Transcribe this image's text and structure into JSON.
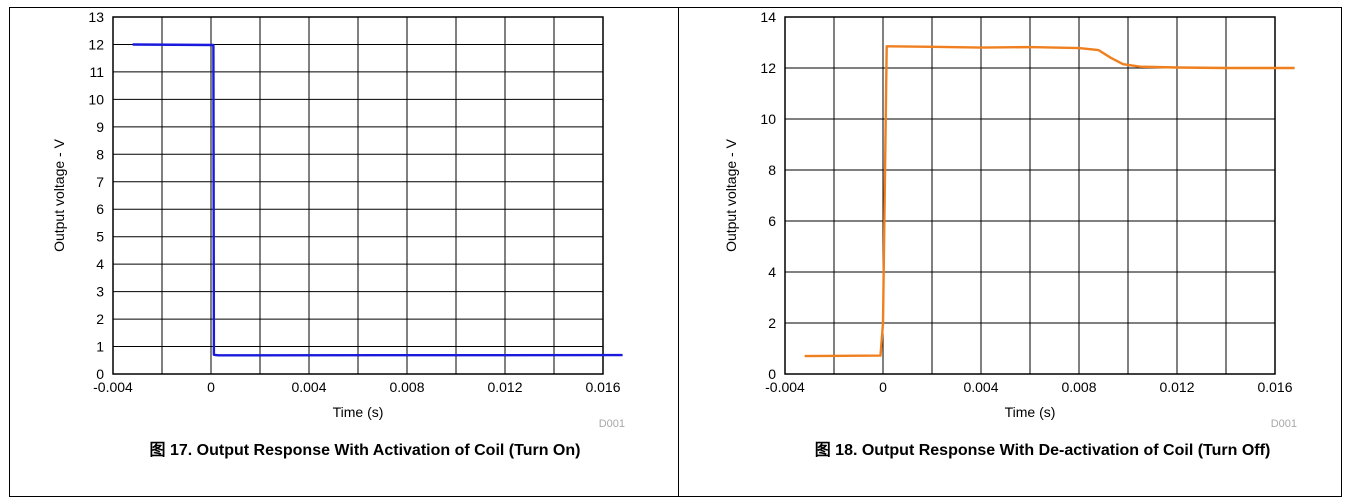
{
  "chart_data": [
    {
      "type": "line",
      "xlabel": "Time (s)",
      "ylabel": "Output voltage - V",
      "xlim": [
        -0.004,
        0.016
      ],
      "ylim": [
        0,
        13
      ],
      "x_ticks": [
        "-0.004",
        "0",
        "0.004",
        "0.008",
        "0.012",
        "0.016"
      ],
      "y_ticks": [
        "0",
        "1",
        "2",
        "3",
        "4",
        "5",
        "6",
        "7",
        "8",
        "9",
        "10",
        "11",
        "12",
        "13"
      ],
      "grid": true,
      "watermark": "D001",
      "caption": "图 17. Output Response With Activation of Coil (Turn On)",
      "color": "#1a1adc",
      "series": [
        {
          "x": [
            -0.0032,
            0.0001,
            0.00012,
            0.0003,
            0.0168
          ],
          "y": [
            12.0,
            11.98,
            0.7,
            0.68,
            0.69
          ]
        }
      ]
    },
    {
      "type": "line",
      "xlabel": "Time (s)",
      "ylabel": "Output voltage - V",
      "xlim": [
        -0.004,
        0.016
      ],
      "ylim": [
        0,
        14
      ],
      "x_ticks": [
        "-0.004",
        "0",
        "0.004",
        "0.008",
        "0.012",
        "0.016"
      ],
      "y_ticks": [
        "0",
        "2",
        "4",
        "6",
        "8",
        "10",
        "12",
        "14"
      ],
      "grid": true,
      "watermark": "D001",
      "caption": "图 18. Output Response With De-activation of Coil (Turn Off)",
      "color": "#f07f1f",
      "series": [
        {
          "x": [
            -0.0032,
            -0.0001,
            0.0,
            0.00015,
            0.002,
            0.004,
            0.006,
            0.008,
            0.0088,
            0.0093,
            0.0098,
            0.0105,
            0.012,
            0.014,
            0.0168
          ],
          "y": [
            0.7,
            0.72,
            2.0,
            12.85,
            12.83,
            12.8,
            12.82,
            12.78,
            12.7,
            12.4,
            12.15,
            12.05,
            12.02,
            12.0,
            12.0
          ]
        }
      ]
    }
  ]
}
